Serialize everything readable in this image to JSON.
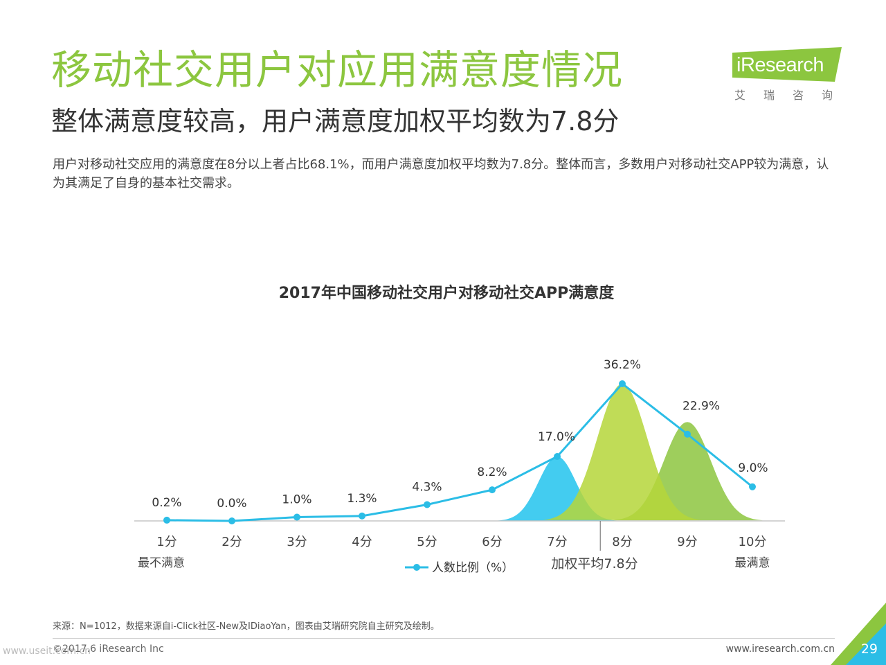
{
  "header": {
    "title": "移动社交用户对应用满意度情况",
    "subtitle": "整体满意度较高，用户满意度加权平均数为7.8分",
    "description": "用户对移动社交应用的满意度在8分以上者占比68.1%，而用户满意度加权平均数为7.8分。整体而言，多数用户对移动社交APP较为满意，认为其满足了自身的基本社交需求。"
  },
  "logo": {
    "word": "iResearch",
    "sub": "艾瑞咨询"
  },
  "colors": {
    "title_green": "#8cc63f",
    "line_blue": "#2bbde6",
    "curve_cyan": "#29c5ee",
    "curve_lightgreen": "#b5d63a",
    "curve_green": "#8dc63f",
    "corner_blue": "#2bbde6",
    "corner_green": "#8cc63f"
  },
  "chart_data": {
    "type": "line",
    "title": "2017年中国移动社交用户对移动社交APP满意度",
    "categories": [
      "1分",
      "2分",
      "3分",
      "4分",
      "5分",
      "6分",
      "7分",
      "8分",
      "9分",
      "10分"
    ],
    "series": [
      {
        "name": "人数比例（%）",
        "values": [
          0.2,
          0.0,
          1.0,
          1.3,
          4.3,
          8.2,
          17.0,
          36.2,
          22.9,
          9.0
        ]
      }
    ],
    "data_labels": [
      "0.2%",
      "0.0%",
      "1.0%",
      "1.3%",
      "4.3%",
      "8.2%",
      "17.0%",
      "36.2%",
      "22.9%",
      "9.0%"
    ],
    "low_label": "最不满意",
    "high_label": "最满意",
    "average_label": "加权平均7.8分",
    "average_value": 7.8,
    "legend_position": "bottom",
    "ylim": [
      0,
      40
    ]
  },
  "footer": {
    "source": "来源：N=1012，数据来源自i-Click社区-New及IDiaoYan，图表由艾瑞研究院自主研究及绘制。",
    "copyright": "©2017.6 iResearch Inc",
    "website": "www.iresearch.com.cn",
    "watermark": "www.useit.com.cn",
    "page_number": "29"
  }
}
